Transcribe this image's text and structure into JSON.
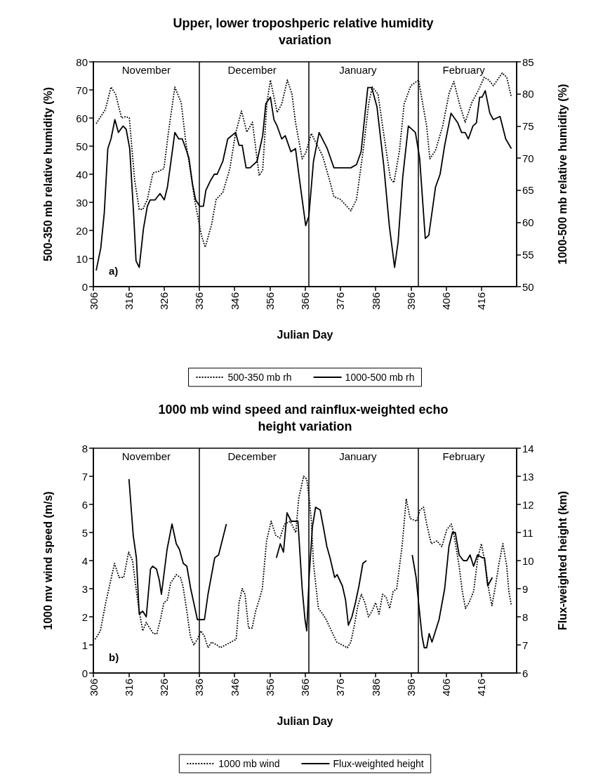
{
  "chart_data": [
    {
      "type": "line",
      "title": "Upper, lower troposhperic relative humidity variation",
      "xlabel": "Julian Day",
      "ylabel": "500-350 mb relative humidity (%)",
      "y2label": "1000-500 mb relative humidity (%)",
      "annotations": [
        "a)",
        "November",
        "December",
        "January",
        "February"
      ],
      "xlim": [
        306,
        426
      ],
      "xticks": [
        306,
        316,
        326,
        336,
        346,
        356,
        366,
        376,
        386,
        396,
        406,
        416
      ],
      "ylim": [
        0,
        80
      ],
      "yticks": [
        0,
        10,
        20,
        30,
        40,
        50,
        60,
        70,
        80
      ],
      "y2lim": [
        50,
        85
      ],
      "y2ticks": [
        50,
        55,
        60,
        65,
        70,
        75,
        80,
        85
      ],
      "grid": false,
      "legend": "bottom",
      "marker": "none",
      "ref_lines": [
        {
          "axis": "x",
          "value": 336,
          "color": "#000000"
        },
        {
          "axis": "x",
          "value": 367,
          "color": "#000000"
        },
        {
          "axis": "x",
          "value": 398,
          "color": "#000000"
        }
      ],
      "series": [
        {
          "name": "500-350 mb rh",
          "color": "#000000",
          "line_style": "dotted",
          "x": [
            306.8,
            307.8,
            309.4,
            311,
            312.3,
            314,
            315.2,
            316.2,
            317.7,
            319,
            320,
            321.3,
            322.9,
            324.5,
            326,
            327.3,
            329.1,
            330.9,
            332.2,
            333.4,
            334.7,
            335.9,
            336.6,
            337.7,
            339.5,
            340.8,
            342.7,
            344.7,
            346.3,
            348,
            349.5,
            351.1,
            353,
            354,
            355.2,
            356.2,
            358.1,
            359.4,
            361,
            362.3,
            363.3,
            365.2,
            366.2,
            367.8,
            369,
            371,
            372.6,
            374.2,
            376.1,
            379,
            380.6,
            382.5,
            384.1,
            385.1,
            386.7,
            388.3,
            390.2,
            391.2,
            392.8,
            394.1,
            396,
            398.2,
            398.9,
            400.5,
            401.4,
            403,
            405,
            406.9,
            408.2,
            409.8,
            411.4,
            413.3,
            415.2,
            416.8,
            418.1,
            419.4,
            421.9,
            423.2,
            424.5
          ],
          "values": [
            58,
            60,
            63,
            71,
            68.5,
            60,
            60.5,
            60,
            38,
            27.5,
            27.5,
            31,
            40.5,
            41,
            42,
            55,
            71,
            65.5,
            51.5,
            42,
            31,
            23,
            18.5,
            14,
            22,
            31,
            33.5,
            42,
            54.5,
            62.5,
            55,
            58.5,
            39.5,
            41.5,
            65.5,
            73.5,
            62,
            65,
            73.5,
            68.5,
            58.5,
            45.5,
            47.5,
            54.5,
            51.5,
            46.5,
            39.5,
            32,
            31,
            27,
            31,
            48.5,
            65.5,
            71,
            68.5,
            54.5,
            38.5,
            37,
            48.5,
            65,
            71.5,
            73.5,
            68.5,
            57,
            45.5,
            48.5,
            57,
            69,
            73,
            65,
            58.5,
            65.5,
            70,
            74.5,
            73.5,
            71.5,
            76,
            74.5,
            67.5
          ]
        },
        {
          "name": "1000-500 mb rh",
          "color": "#000000",
          "line_style": "solid",
          "axis": "y2",
          "x": [
            306.8,
            308.1,
            309.1,
            310.1,
            311,
            312.1,
            313.1,
            314.4,
            315.3,
            316.3,
            317.4,
            318.1,
            319,
            320.2,
            321.3,
            322.1,
            323.5,
            324.9,
            326.1,
            327,
            328,
            329.1,
            330.2,
            331.2,
            332.2,
            333.1,
            334.1,
            335,
            336.2,
            337.2,
            337.9,
            339.2,
            340.3,
            341.1,
            342.7,
            344.1,
            346.3,
            347.3,
            348.2,
            349.3,
            350.4,
            352.4,
            354,
            354.9,
            356.2,
            357.2,
            358.1,
            359.4,
            360.4,
            362,
            363.3,
            364.6,
            366.2,
            367.1,
            368.4,
            370,
            372.3,
            374.2,
            376.1,
            377.7,
            379,
            380.6,
            381.9,
            383.8,
            384.9,
            386.4,
            388.3,
            389.9,
            391.4,
            392.4,
            393.7,
            395.3,
            397.3,
            398.5,
            400.1,
            401.1,
            403,
            404.3,
            405.6,
            407.4,
            409.3,
            410.4,
            411.4,
            412.3,
            413.6,
            414.6,
            415.5,
            416.2,
            417.1,
            418.4,
            419.4,
            421.3,
            422.9,
            424.5
          ],
          "values": [
            52.5,
            56,
            61.5,
            71.5,
            73,
            76,
            74,
            75,
            74.5,
            71.5,
            61.5,
            54,
            53,
            59,
            62.5,
            63.5,
            63.5,
            64.5,
            63.5,
            65.5,
            69.5,
            74,
            73,
            73,
            71.5,
            70,
            66,
            63.5,
            62.5,
            62.5,
            65,
            66.5,
            67.5,
            67.5,
            69.5,
            73,
            74,
            72,
            72,
            68.5,
            68.5,
            69.5,
            73.5,
            78.5,
            79.5,
            76,
            75,
            73,
            73.5,
            71,
            71.5,
            66,
            59.5,
            61,
            69.5,
            74,
            71.5,
            68.5,
            68.5,
            68.5,
            68.5,
            69,
            71,
            81,
            81,
            78,
            69,
            59.5,
            53,
            57,
            67,
            75,
            74,
            70,
            57.5,
            58,
            65.5,
            67.5,
            72,
            77,
            75.5,
            74,
            74,
            73,
            75,
            75.5,
            79.5,
            79.5,
            80.5,
            77,
            76,
            76.5,
            73,
            71.5
          ]
        }
      ]
    },
    {
      "type": "line",
      "title": "1000 mb wind speed and rainflux-weighted echo height variation",
      "xlabel": "Julian Day",
      "ylabel": "1000 mv wind speed (m/s)",
      "y2label": "Flux-weighted height (km)",
      "annotations": [
        "b)",
        "November",
        "December",
        "January",
        "February"
      ],
      "xlim": [
        306,
        426
      ],
      "xticks": [
        306,
        316,
        326,
        336,
        346,
        356,
        366,
        376,
        386,
        396,
        406,
        416
      ],
      "ylim": [
        0,
        8
      ],
      "yticks": [
        0,
        1,
        2,
        3,
        4,
        5,
        6,
        7,
        8
      ],
      "y2lim": [
        6,
        14
      ],
      "y2ticks": [
        6,
        7,
        8,
        9,
        10,
        11,
        12,
        13,
        14
      ],
      "grid": false,
      "legend": "bottom",
      "marker": "none",
      "ref_lines": [
        {
          "axis": "x",
          "value": 336,
          "color": "#000000"
        },
        {
          "axis": "x",
          "value": 367,
          "color": "#000000"
        },
        {
          "axis": "x",
          "value": 398,
          "color": "#000000"
        }
      ],
      "series": [
        {
          "name": "1000 mb wind",
          "color": "#000000",
          "line_style": "dotted",
          "x": [
            306.5,
            308,
            309.5,
            310.4,
            312,
            313.3,
            314.6,
            316,
            317.1,
            318,
            319,
            320,
            321,
            322,
            323,
            324,
            325,
            326,
            327,
            327.9,
            329.5,
            330.7,
            331.4,
            332.5,
            333.5,
            334.5,
            335.5,
            336.5,
            337.5,
            338.5,
            339.5,
            341,
            342,
            343.5,
            345,
            346.5,
            347.3,
            348.2,
            349,
            350,
            351,
            352,
            353,
            353.9,
            355.1,
            356.4,
            357.7,
            358.9,
            360.2,
            361.8,
            363.4,
            364.2,
            365.6,
            366.5,
            367.3,
            367.8,
            368.4,
            369.8,
            371,
            372,
            373.5,
            375,
            376.5,
            378,
            379,
            380,
            381,
            382,
            383,
            384,
            385,
            386,
            387,
            388,
            389,
            390,
            391,
            392,
            393.6,
            394.7,
            395.8,
            397.7,
            398.6,
            399.6,
            400.5,
            401.8,
            403.4,
            404.8,
            406.2,
            407.5,
            408.4,
            409.7,
            410.6,
            411.5,
            412.5,
            413.8,
            415,
            416,
            416.9,
            418.2,
            419,
            420,
            421,
            422.1,
            423.2,
            423.8,
            424.5
          ],
          "values": [
            1.2,
            1.5,
            2.5,
            3.0,
            3.9,
            3.4,
            3.4,
            4.3,
            4.0,
            3.1,
            2.2,
            1.5,
            1.8,
            1.6,
            1.4,
            1.4,
            1.9,
            2.5,
            2.6,
            3.2,
            3.5,
            3.4,
            3.1,
            2.2,
            1.3,
            1.0,
            1.2,
            1.5,
            1.3,
            0.9,
            1.1,
            1.0,
            0.9,
            1.0,
            1.1,
            1.2,
            2.5,
            3.0,
            2.8,
            1.6,
            1.6,
            2.2,
            2.6,
            3.0,
            4.7,
            5.4,
            4.9,
            4.8,
            5.3,
            5.4,
            5.0,
            6.2,
            7.0,
            6.9,
            6.1,
            5.4,
            3.9,
            2.3,
            2.1,
            1.9,
            1.5,
            1.1,
            1.0,
            0.9,
            1.1,
            1.7,
            2.4,
            2.8,
            2.5,
            2.0,
            2.2,
            2.5,
            2.1,
            2.8,
            2.7,
            2.3,
            2.9,
            3.0,
            4.6,
            6.2,
            5.5,
            5.4,
            5.8,
            5.9,
            5.3,
            4.6,
            4.7,
            4.5,
            5.1,
            5.3,
            4.8,
            3.8,
            2.9,
            2.3,
            2.5,
            2.9,
            4.1,
            4.6,
            4.0,
            2.9,
            2.4,
            3.1,
            3.9,
            4.6,
            3.8,
            2.9,
            2.4
          ]
        },
        {
          "name": "Flux-weighted height",
          "color": "#000000",
          "line_style": "solid",
          "axis": "y2",
          "x": [
            316.1,
            317.3,
            318.2,
            319,
            320,
            321,
            322.2,
            322.8,
            323.9,
            324.7,
            325.3,
            326.9,
            328.3,
            329.5,
            330.4,
            331.5,
            332.5,
            333.6,
            335.5,
            336.5,
            337.5,
            338.5,
            340.4,
            341.5,
            343.7,
            350,
            357.9,
            359,
            359.9,
            360.9,
            362.1,
            363.4,
            364,
            365.2,
            366,
            366.5,
            367.2,
            368.1,
            369,
            370.3,
            371.2,
            372.2,
            373.1,
            374.4,
            375.1,
            376.6,
            377.5,
            378.3,
            379.3,
            380.3,
            381.3,
            382.4,
            383.4,
            390,
            396.4,
            397.5,
            398.2,
            399.2,
            399.8,
            400.5,
            401.2,
            402,
            403,
            404,
            405.6,
            406.8,
            407.8,
            408.6,
            409.7,
            410.9,
            411.9,
            412.8,
            413.8,
            414.9,
            416.3,
            416.9,
            417.8,
            419.1
          ],
          "values": [
            12.9,
            10.9,
            10.1,
            8.1,
            8.2,
            8.0,
            9.7,
            9.8,
            9.7,
            9.3,
            8.8,
            10.4,
            11.3,
            10.6,
            10.4,
            9.9,
            9.8,
            9.0,
            7.9,
            7.9,
            7.9,
            8.8,
            10.1,
            10.2,
            11.3,
            null,
            10.1,
            10.6,
            10.3,
            11.7,
            11.4,
            11.4,
            11.4,
            9.0,
            7.9,
            7.5,
            9.5,
            11.2,
            11.9,
            11.8,
            11.2,
            10.5,
            10.1,
            9.4,
            9.5,
            9.1,
            8.6,
            7.7,
            8.0,
            8.5,
            9.1,
            9.9,
            10.0,
            null,
            10.2,
            9.4,
            8.5,
            7.3,
            6.9,
            6.9,
            7.4,
            7.1,
            7.5,
            7.9,
            9.0,
            10.5,
            11.0,
            11.0,
            10.2,
            10.0,
            10.0,
            10.2,
            9.8,
            10.2,
            10.1,
            10.1,
            9.1,
            9.4
          ]
        }
      ]
    }
  ]
}
